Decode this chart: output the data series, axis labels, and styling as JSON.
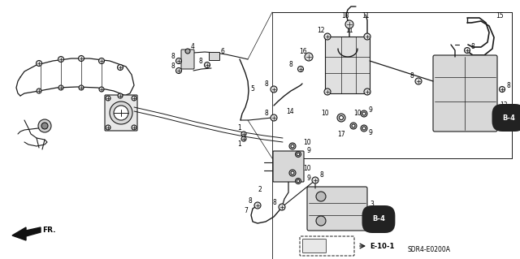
{
  "bg_color": "#ffffff",
  "diagram_code": "SDR4-E0200A",
  "fr_label": "FR.",
  "e10_label": "E-10-1",
  "b4_label_1": "B-4",
  "b4_label_2": "B-4",
  "line_color": "#1a1a1a",
  "text_color": "#000000",
  "gray_fill": "#c8c8c8",
  "light_gray": "#e0e0e0",
  "dark_gray": "#888888"
}
